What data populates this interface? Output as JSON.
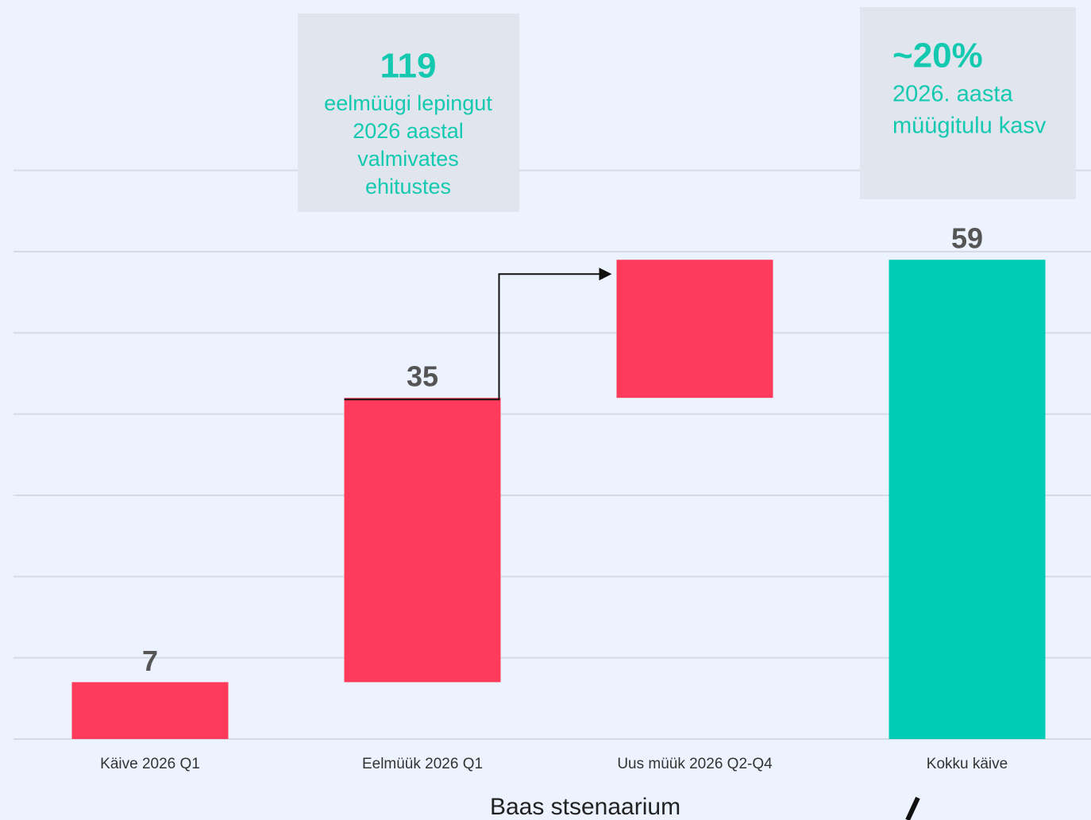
{
  "chart_data": {
    "type": "waterfall",
    "xlabel": "Baas stsenaarium",
    "categories": [
      "Käive 2026 Q1",
      "Eelmüük 2026 Q1",
      "Uus müük 2026 Q2-Q4",
      "Kokku käive"
    ],
    "values": [
      7,
      35,
      17,
      59
    ],
    "value_labels": [
      "7",
      "35",
      null,
      "59"
    ],
    "is_total": [
      false,
      false,
      false,
      true
    ],
    "increase_color": "#ff3b5c",
    "total_color": "#00cbb5",
    "ylim": [
      0,
      90
    ],
    "yticks": [
      0,
      10,
      20,
      30,
      40,
      50,
      60,
      70
    ],
    "grid": true,
    "annotations": [
      {
        "headline": "119",
        "lines": [
          "eelmüügi lepingut",
          "2026 aastal",
          "valmivates",
          "ehitustes"
        ]
      },
      {
        "headline": "~20%",
        "lines": [
          "2026. aasta",
          "müügitulu kasv"
        ]
      }
    ]
  }
}
